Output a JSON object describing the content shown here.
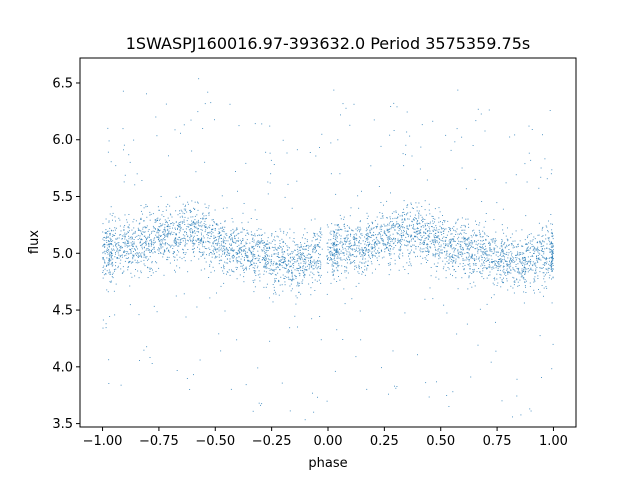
{
  "chart_data": {
    "type": "scatter",
    "title": "1SWASPJ160016.97-393632.0 Period 3575359.75s",
    "xlabel": "phase",
    "ylabel": "flux",
    "xlim": [
      -1.1,
      1.1
    ],
    "ylim": [
      3.47,
      6.72
    ],
    "x_ticks": [
      -1.0,
      -0.75,
      -0.5,
      -0.25,
      0.0,
      0.25,
      0.5,
      0.75,
      1.0
    ],
    "x_tick_labels": [
      "−1.00",
      "−0.75",
      "−0.50",
      "−0.25",
      "0.00",
      "0.25",
      "0.50",
      "0.75",
      "1.00"
    ],
    "y_ticks": [
      3.5,
      4.0,
      4.5,
      5.0,
      5.5,
      6.0,
      6.5
    ],
    "y_tick_labels": [
      "3.5",
      "4.0",
      "4.5",
      "5.0",
      "5.5",
      "6.0",
      "6.5"
    ],
    "grid": false,
    "legend": "none",
    "marker_color": "#1f77b4",
    "series": [
      {
        "note_points_are_dense_cloud": true,
        "phase_range": [
          -1.0,
          1.0
        ],
        "clusters": [
          {
            "x": -0.98,
            "y": 5.0
          },
          {
            "x": -0.95,
            "y": 5.05
          },
          {
            "x": -0.9,
            "y": 5.05
          },
          {
            "x": -0.85,
            "y": 5.05
          },
          {
            "x": -0.8,
            "y": 5.1
          },
          {
            "x": -0.75,
            "y": 5.15
          },
          {
            "x": -0.7,
            "y": 5.15
          },
          {
            "x": -0.65,
            "y": 5.2
          },
          {
            "x": -0.6,
            "y": 5.2
          },
          {
            "x": -0.55,
            "y": 5.15
          },
          {
            "x": -0.5,
            "y": 5.1
          },
          {
            "x": -0.45,
            "y": 5.05
          },
          {
            "x": -0.4,
            "y": 5.05
          },
          {
            "x": -0.35,
            "y": 5.0
          },
          {
            "x": -0.3,
            "y": 5.0
          },
          {
            "x": -0.25,
            "y": 4.95
          },
          {
            "x": -0.2,
            "y": 4.95
          },
          {
            "x": -0.15,
            "y": 4.9
          },
          {
            "x": -0.1,
            "y": 4.95
          },
          {
            "x": -0.05,
            "y": 5.0
          },
          {
            "x": 0.02,
            "y": 5.0
          },
          {
            "x": 0.05,
            "y": 5.05
          },
          {
            "x": 0.1,
            "y": 5.05
          },
          {
            "x": 0.15,
            "y": 5.05
          },
          {
            "x": 0.2,
            "y": 5.1
          },
          {
            "x": 0.25,
            "y": 5.15
          },
          {
            "x": 0.3,
            "y": 5.15
          },
          {
            "x": 0.35,
            "y": 5.2
          },
          {
            "x": 0.4,
            "y": 5.2
          },
          {
            "x": 0.45,
            "y": 5.15
          },
          {
            "x": 0.5,
            "y": 5.1
          },
          {
            "x": 0.55,
            "y": 5.05
          },
          {
            "x": 0.6,
            "y": 5.05
          },
          {
            "x": 0.65,
            "y": 5.0
          },
          {
            "x": 0.7,
            "y": 5.0
          },
          {
            "x": 0.75,
            "y": 4.95
          },
          {
            "x": 0.8,
            "y": 4.95
          },
          {
            "x": 0.85,
            "y": 4.9
          },
          {
            "x": 0.9,
            "y": 4.95
          },
          {
            "x": 0.95,
            "y": 5.0
          },
          {
            "x": 1.0,
            "y": 5.0
          }
        ]
      }
    ]
  }
}
